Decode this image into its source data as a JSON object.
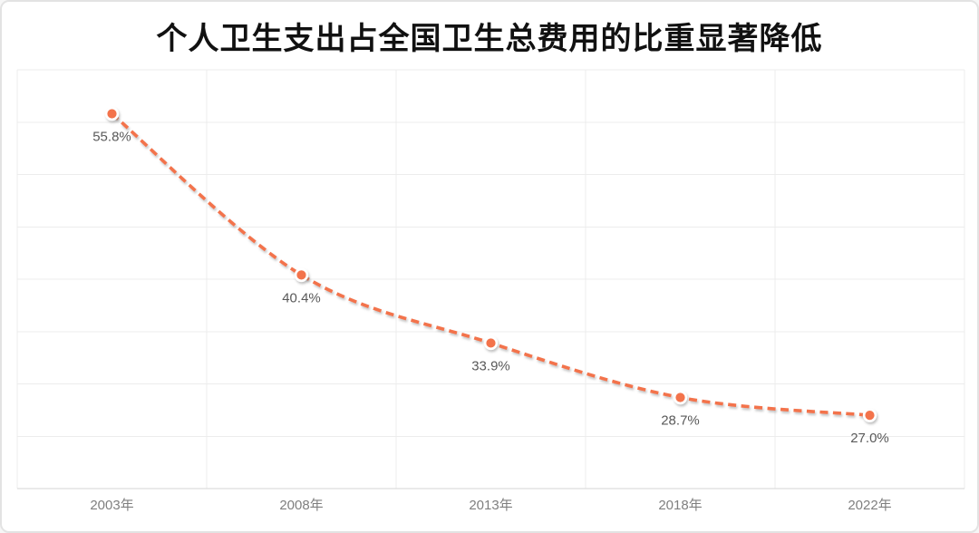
{
  "chart_data": {
    "type": "line",
    "title": "个人卫生支出占全国卫生总费用的比重显著降低",
    "categories": [
      "2003年",
      "2008年",
      "2013年",
      "2018年",
      "2022年"
    ],
    "values": [
      55.8,
      40.4,
      33.9,
      28.7,
      27.0
    ],
    "data_labels": [
      "55.8%",
      "40.4%",
      "33.9%",
      "28.7%",
      "27.0%"
    ],
    "xlabel": "",
    "ylabel": "",
    "ylim": [
      20,
      60
    ],
    "y_step": 5,
    "grid": true,
    "legend_position": "none",
    "line_style": "dashed",
    "line_smooth": true,
    "colors": {
      "line": "#F3734C",
      "marker_fill": "#F3734C",
      "marker_ring": "#FFFFFF",
      "data_label": "#595959",
      "axis_label": "#7F7F7F",
      "gridline": "#ECECEC",
      "axis_line": "#D5D5D5",
      "title": "#111111",
      "card_border": "#E3E3E3",
      "background": "#FFFFFF"
    }
  }
}
